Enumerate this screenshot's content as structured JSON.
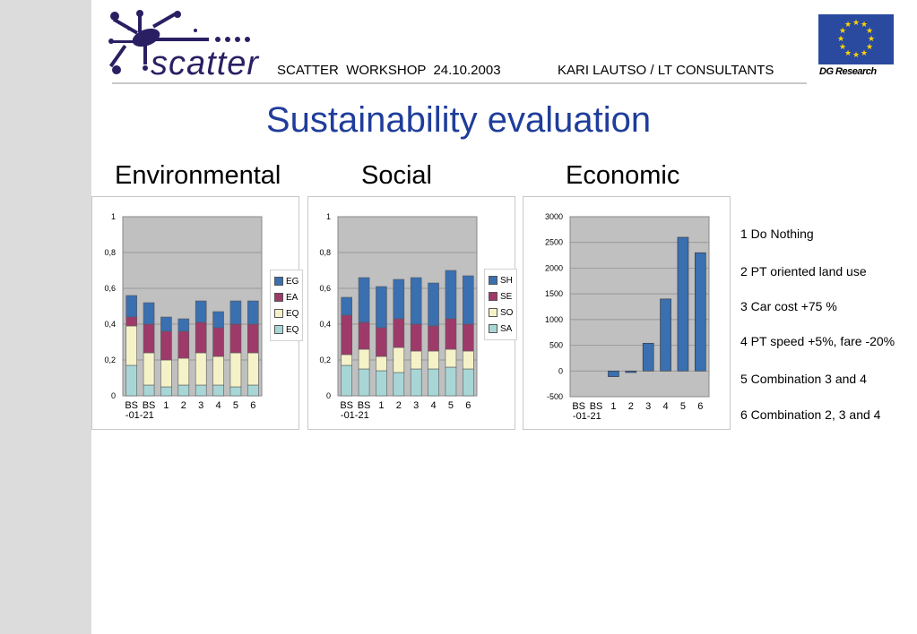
{
  "header": {
    "logo_text": "scatter",
    "workshop": "SCATTER  WORKSHOP  24.10.2003",
    "author": "KARI LAUTSO / LT CONSULTANTS",
    "eu_caption": "DG Research"
  },
  "title": "Sustainability evaluation",
  "column_titles": [
    "Environmental",
    "Social",
    "Economic"
  ],
  "scenarios": [
    "1 Do Nothing",
    "2 PT oriented land use",
    "3 Car cost +75 %",
    "4 PT speed +5%, fare -20%",
    "5 Combination 3 and 4",
    "6 Combination 2, 3 and 4"
  ],
  "colors": {
    "blue": "#3a6fb0",
    "maroon": "#9e3a6a",
    "cream": "#f5f2c8",
    "teal": "#a8d6d6",
    "plot_bg": "#c0c0c0",
    "title": "#1f3d9a"
  },
  "chart_data": [
    {
      "type": "bar",
      "stacked": true,
      "categories": [
        "BS -01",
        "BS -21",
        "1",
        "2",
        "3",
        "4",
        "5",
        "6"
      ],
      "tick_labels_top": [
        "BS",
        "BS",
        "1",
        "2",
        "3",
        "4",
        "5",
        "6"
      ],
      "tick_labels_bottom": [
        "-01",
        "-21"
      ],
      "yticks": [
        "0",
        "0,2",
        "0,4",
        "0,6",
        "0,8",
        "1"
      ],
      "ylim": [
        0,
        1
      ],
      "legend": [
        "EG",
        "EA",
        "EQ",
        "EQ"
      ],
      "series": [
        {
          "name": "EQ",
          "color": "#a8d6d6",
          "values": [
            0.17,
            0.06,
            0.05,
            0.06,
            0.06,
            0.06,
            0.05,
            0.06
          ]
        },
        {
          "name": "EQ",
          "color": "#f5f2c8",
          "values": [
            0.22,
            0.18,
            0.15,
            0.15,
            0.18,
            0.16,
            0.19,
            0.18
          ]
        },
        {
          "name": "EA",
          "color": "#9e3a6a",
          "values": [
            0.05,
            0.16,
            0.16,
            0.15,
            0.17,
            0.16,
            0.16,
            0.16
          ]
        },
        {
          "name": "EG",
          "color": "#3a6fb0",
          "values": [
            0.12,
            0.12,
            0.08,
            0.07,
            0.12,
            0.09,
            0.13,
            0.13
          ]
        }
      ]
    },
    {
      "type": "bar",
      "stacked": true,
      "categories": [
        "BS -01",
        "BS -21",
        "1",
        "2",
        "3",
        "4",
        "5",
        "6"
      ],
      "tick_labels_top": [
        "BS",
        "BS",
        "1",
        "2",
        "3",
        "4",
        "5",
        "6"
      ],
      "tick_labels_bottom": [
        "-01",
        "-21"
      ],
      "yticks": [
        "0",
        "0,2",
        "0,4",
        "0,6",
        "0,8",
        "1"
      ],
      "ylim": [
        0,
        1
      ],
      "legend": [
        "SH",
        "SE",
        "SO",
        "SA"
      ],
      "series": [
        {
          "name": "SA",
          "color": "#a8d6d6",
          "values": [
            0.17,
            0.15,
            0.14,
            0.13,
            0.15,
            0.15,
            0.16,
            0.15
          ]
        },
        {
          "name": "SO",
          "color": "#f5f2c8",
          "values": [
            0.06,
            0.11,
            0.08,
            0.14,
            0.1,
            0.1,
            0.1,
            0.1
          ]
        },
        {
          "name": "SE",
          "color": "#9e3a6a",
          "values": [
            0.22,
            0.15,
            0.16,
            0.16,
            0.15,
            0.14,
            0.17,
            0.15
          ]
        },
        {
          "name": "SH",
          "color": "#3a6fb0",
          "values": [
            0.1,
            0.25,
            0.23,
            0.22,
            0.26,
            0.24,
            0.27,
            0.27
          ]
        }
      ]
    },
    {
      "type": "bar",
      "categories": [
        "BS -01",
        "BS -21",
        "1",
        "2",
        "3",
        "4",
        "5",
        "6"
      ],
      "tick_labels_top": [
        "BS",
        "BS",
        "1",
        "2",
        "3",
        "4",
        "5",
        "6"
      ],
      "tick_labels_bottom": [
        "-01",
        "-21"
      ],
      "yticks": [
        "-500",
        "0",
        "500",
        "1000",
        "1500",
        "2000",
        "2500",
        "3000"
      ],
      "ylim": [
        -500,
        3000
      ],
      "series": [
        {
          "color": "#3a6fb0",
          "values": [
            0,
            0,
            -110,
            -30,
            540,
            1400,
            2600,
            2300
          ]
        }
      ]
    }
  ]
}
